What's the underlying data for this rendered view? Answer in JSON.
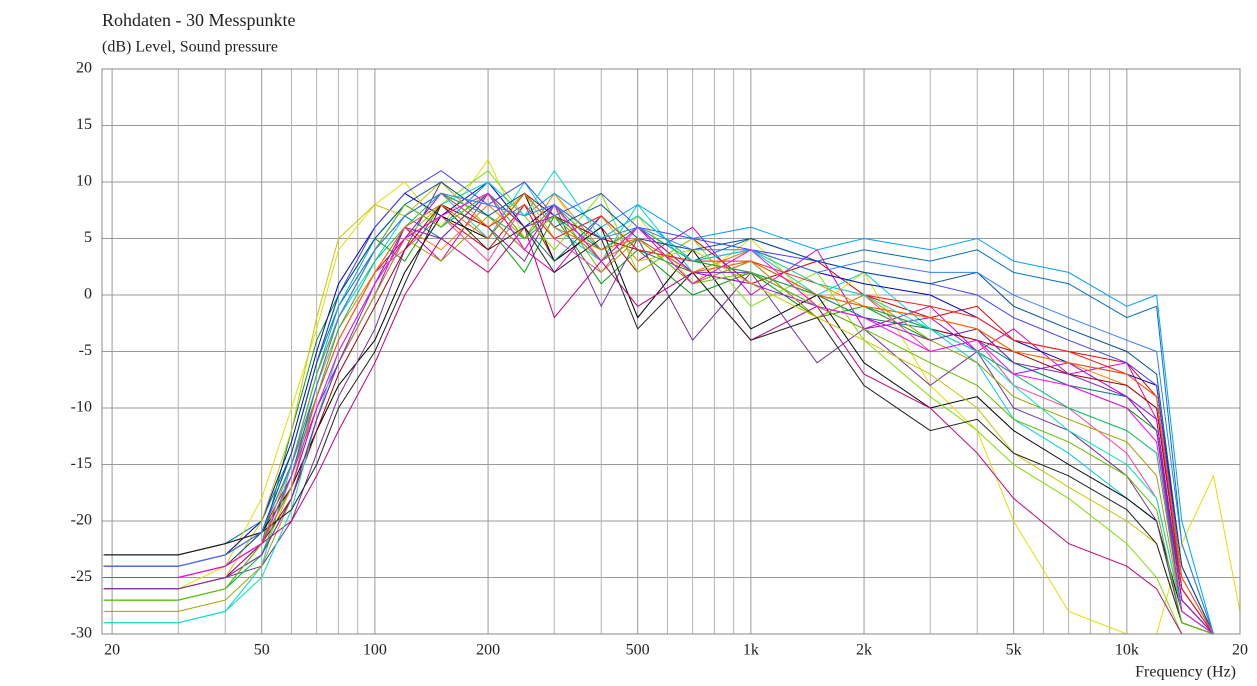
{
  "chart_data": {
    "type": "line",
    "title": "Rohdaten - 30 Messpunkte",
    "subtitle": "(dB)  Level, Sound pressure",
    "x_label": "Frequency  (Hz)",
    "x_scale": "log",
    "grid": true,
    "xlim": [
      18.8,
      20000
    ],
    "ylim": [
      -30,
      20
    ],
    "yticks": [
      -30,
      -25,
      -20,
      -15,
      -10,
      -5,
      0,
      5,
      10,
      15,
      20
    ],
    "xticks": [
      20,
      50,
      100,
      200,
      500,
      {
        "value": 1000,
        "label": "1k"
      },
      {
        "value": 2000,
        "label": "2k"
      },
      {
        "value": 5000,
        "label": "5k"
      },
      {
        "value": 10000,
        "label": "10k"
      },
      {
        "value": 20000,
        "label": "20"
      }
    ],
    "xminorticks": [
      30,
      40,
      60,
      70,
      80,
      90,
      300,
      400,
      600,
      700,
      800,
      900,
      3000,
      4000,
      6000,
      7000,
      8000,
      9000
    ],
    "x": [
      19,
      30,
      40,
      50,
      60,
      70,
      80,
      100,
      120,
      150,
      200,
      250,
      300,
      400,
      500,
      700,
      1000,
      1500,
      2000,
      3000,
      4000,
      5000,
      7000,
      10000,
      12000,
      14000,
      17000,
      20000
    ],
    "series": [
      {
        "color": "#0070c0",
        "values": [
          -23,
          -23,
          -22,
          -20,
          -14,
          -6,
          -1,
          4,
          8,
          6,
          9,
          5,
          7,
          4,
          6,
          3,
          5,
          3,
          4,
          3,
          4,
          2,
          1,
          -2,
          -1,
          -22,
          -30,
          -30
        ]
      },
      {
        "color": "#e00000",
        "values": [
          -24,
          -24,
          -23,
          -21,
          -16,
          -9,
          -4,
          2,
          5,
          7,
          4,
          8,
          3,
          6,
          2,
          5,
          1,
          3,
          0,
          -2,
          -1,
          -4,
          -5,
          -6,
          -9,
          -26,
          -30,
          -30
        ]
      },
      {
        "color": "#00a000",
        "values": [
          -27,
          -27,
          -26,
          -22,
          -12,
          -4,
          0,
          5,
          3,
          8,
          6,
          2,
          7,
          1,
          4,
          0,
          2,
          -2,
          -1,
          -4,
          -3,
          -6,
          -8,
          -10,
          -12,
          -28,
          -30,
          -30
        ]
      },
      {
        "color": "#e000c0",
        "values": [
          -26,
          -26,
          -25,
          -23,
          -18,
          -11,
          -6,
          0,
          6,
          3,
          9,
          4,
          2,
          7,
          3,
          6,
          0,
          4,
          -3,
          -1,
          -5,
          -3,
          -7,
          -6,
          -11,
          -27,
          -30,
          -30
        ]
      },
      {
        "color": "#00d0e0",
        "values": [
          -29,
          -29,
          -28,
          -24,
          -15,
          -7,
          -2,
          3,
          7,
          9,
          5,
          10,
          6,
          3,
          8,
          2,
          4,
          0,
          2,
          -3,
          -6,
          -11,
          -14,
          -18,
          -20,
          -29,
          -30,
          -30
        ]
      },
      {
        "color": "#e0e000",
        "values": [
          -26,
          -26,
          -24,
          -18,
          -10,
          -3,
          4,
          8,
          10,
          6,
          12,
          5,
          9,
          3,
          7,
          1,
          5,
          -1,
          2,
          -8,
          -12,
          -20,
          -28,
          -30,
          -30,
          -22,
          -16,
          -28
        ]
      },
      {
        "color": "#000000",
        "values": [
          -23,
          -23,
          -22,
          -21,
          -17,
          -12,
          -8,
          -4,
          2,
          7,
          5,
          9,
          3,
          6,
          -2,
          4,
          -3,
          0,
          -6,
          -10,
          -9,
          -12,
          -15,
          -18,
          -20,
          -28,
          -30,
          -30
        ]
      },
      {
        "color": "#7030a0",
        "values": [
          -26,
          -26,
          -25,
          -24,
          -20,
          -14,
          -9,
          -3,
          4,
          10,
          6,
          3,
          8,
          -1,
          5,
          -4,
          2,
          -6,
          -3,
          -8,
          -5,
          -10,
          -12,
          -16,
          -20,
          -29,
          -30,
          -30
        ]
      },
      {
        "color": "#ff8000",
        "values": [
          -25,
          -25,
          -24,
          -22,
          -16,
          -8,
          -3,
          2,
          6,
          4,
          8,
          5,
          9,
          4,
          6,
          2,
          4,
          1,
          -1,
          -2,
          -3,
          -5,
          -6,
          -8,
          -10,
          -25,
          -30,
          -30
        ]
      },
      {
        "color": "#0000c0",
        "values": [
          -24,
          -24,
          -23,
          -20,
          -13,
          -5,
          1,
          6,
          9,
          7,
          10,
          6,
          8,
          5,
          7,
          3,
          4,
          2,
          1,
          0,
          -2,
          -4,
          -6,
          -7,
          -8,
          -24,
          -30,
          -30
        ]
      },
      {
        "color": "#80e000",
        "values": [
          -27,
          -27,
          -26,
          -23,
          -17,
          -10,
          -5,
          1,
          5,
          8,
          11,
          7,
          4,
          9,
          2,
          5,
          -1,
          2,
          -4,
          -9,
          -12,
          -15,
          -18,
          -22,
          -25,
          -30,
          -30,
          -30
        ]
      },
      {
        "color": "#ff40a0",
        "values": [
          -25,
          -25,
          -24,
          -21,
          -15,
          -9,
          -4,
          2,
          4,
          7,
          3,
          8,
          5,
          2,
          6,
          1,
          3,
          -2,
          0,
          -5,
          -4,
          -8,
          -10,
          -14,
          -18,
          -28,
          -30,
          -30
        ]
      },
      {
        "color": "#008080",
        "values": [
          -26,
          -26,
          -25,
          -22,
          -16,
          -8,
          -2,
          4,
          7,
          5,
          9,
          6,
          3,
          7,
          4,
          2,
          3,
          0,
          -2,
          -3,
          -4,
          -6,
          -8,
          -9,
          -12,
          -26,
          -30,
          -30
        ]
      },
      {
        "color": "#a000ff",
        "values": [
          -25,
          -25,
          -24,
          -22,
          -17,
          -10,
          -6,
          0,
          5,
          9,
          7,
          4,
          8,
          3,
          6,
          2,
          1,
          -1,
          -3,
          -2,
          -5,
          -7,
          -6,
          -9,
          -11,
          -27,
          -30,
          -30
        ]
      },
      {
        "color": "#00a0ff",
        "values": [
          -24,
          -24,
          -23,
          -21,
          -15,
          -7,
          -1,
          5,
          8,
          6,
          10,
          7,
          9,
          6,
          8,
          5,
          6,
          4,
          5,
          4,
          5,
          3,
          2,
          -1,
          0,
          -20,
          -30,
          -30
        ]
      },
      {
        "color": "#a00000",
        "values": [
          -25,
          -25,
          -24,
          -22,
          -18,
          -12,
          -7,
          -1,
          4,
          8,
          6,
          9,
          7,
          5,
          4,
          3,
          2,
          0,
          -1,
          -3,
          -4,
          -5,
          -7,
          -8,
          -10,
          -26,
          -30,
          -30
        ]
      },
      {
        "color": "#a0a000",
        "values": [
          -28,
          -28,
          -27,
          -24,
          -18,
          -11,
          -6,
          0,
          5,
          3,
          7,
          4,
          8,
          2,
          5,
          1,
          3,
          -2,
          0,
          -4,
          -6,
          -9,
          -11,
          -13,
          -16,
          -28,
          -30,
          -30
        ]
      },
      {
        "color": "#c00080",
        "values": [
          -26,
          -26,
          -25,
          -22,
          -20,
          -16,
          -12,
          -6,
          0,
          5,
          2,
          6,
          -2,
          3,
          -1,
          2,
          -4,
          -1,
          -7,
          -10,
          -14,
          -18,
          -22,
          -24,
          -26,
          -30,
          -30,
          -30
        ]
      },
      {
        "color": "#4040ff",
        "values": [
          -24,
          -24,
          -23,
          -21,
          -14,
          -6,
          0,
          6,
          9,
          11,
          8,
          10,
          7,
          9,
          6,
          5,
          4,
          3,
          2,
          1,
          0,
          -2,
          -4,
          -6,
          -8,
          -25,
          -30,
          -30
        ]
      },
      {
        "color": "#00c060",
        "values": [
          -27,
          -27,
          -26,
          -23,
          -16,
          -9,
          -3,
          3,
          6,
          9,
          7,
          5,
          8,
          4,
          6,
          3,
          2,
          0,
          -1,
          -3,
          -5,
          -7,
          -10,
          -12,
          -14,
          -28,
          -30,
          -30
        ]
      },
      {
        "color": "#c8c800",
        "values": [
          -26,
          -26,
          -25,
          -20,
          -12,
          -2,
          5,
          8,
          7,
          10,
          6,
          9,
          5,
          7,
          3,
          4,
          1,
          -2,
          -4,
          -7,
          -10,
          -14,
          -17,
          -20,
          -22,
          -29,
          -30,
          -30
        ]
      },
      {
        "color": "#ff2020",
        "values": [
          -24,
          -24,
          -23,
          -21,
          -15,
          -7,
          -2,
          4,
          7,
          9,
          6,
          8,
          5,
          7,
          4,
          3,
          3,
          1,
          0,
          -1,
          -2,
          -4,
          -5,
          -7,
          -9,
          -26,
          -30,
          -30
        ]
      },
      {
        "color": "#00e0c0",
        "values": [
          -29,
          -29,
          -28,
          -25,
          -19,
          -11,
          -5,
          1,
          6,
          8,
          10,
          7,
          11,
          5,
          7,
          3,
          4,
          1,
          0,
          -3,
          -5,
          -8,
          -12,
          -15,
          -18,
          -28,
          -30,
          -30
        ]
      },
      {
        "color": "#8020c0",
        "values": [
          -26,
          -26,
          -25,
          -23,
          -18,
          -11,
          -6,
          1,
          6,
          5,
          9,
          6,
          7,
          3,
          5,
          2,
          2,
          -1,
          -2,
          -4,
          -3,
          -6,
          -7,
          -9,
          -12,
          -27,
          -30,
          -30
        ]
      },
      {
        "color": "#202020",
        "values": [
          -23,
          -23,
          -22,
          -21,
          -19,
          -15,
          -10,
          -5,
          1,
          8,
          4,
          6,
          2,
          5,
          -3,
          2,
          -4,
          -2,
          -8,
          -12,
          -11,
          -14,
          -16,
          -19,
          -22,
          -29,
          -30,
          -30
        ]
      },
      {
        "color": "#0050a0",
        "values": [
          -25,
          -25,
          -24,
          -21,
          -14,
          -6,
          0,
          5,
          8,
          10,
          7,
          9,
          6,
          8,
          5,
          4,
          5,
          3,
          2,
          1,
          2,
          -1,
          -3,
          -5,
          -7,
          -24,
          -30,
          -30
        ]
      },
      {
        "color": "#60c000",
        "values": [
          -27,
          -27,
          -26,
          -22,
          -15,
          -7,
          -2,
          4,
          8,
          6,
          9,
          5,
          7,
          3,
          5,
          1,
          2,
          -1,
          -3,
          -6,
          -8,
          -11,
          -13,
          -16,
          -19,
          -29,
          -30,
          -30
        ]
      },
      {
        "color": "#ff6000",
        "values": [
          -25,
          -25,
          -24,
          -22,
          -17,
          -9,
          -4,
          2,
          6,
          8,
          5,
          9,
          6,
          4,
          5,
          2,
          3,
          0,
          -1,
          -2,
          -3,
          -5,
          -6,
          -7,
          -9,
          -25,
          -30,
          -30
        ]
      },
      {
        "color": "#ff00ff",
        "values": [
          -25,
          -25,
          -24,
          -22,
          -16,
          -10,
          -5,
          1,
          5,
          7,
          9,
          4,
          8,
          3,
          6,
          1,
          4,
          -1,
          -2,
          -5,
          -4,
          -7,
          -8,
          -10,
          -13,
          -28,
          -30,
          -30
        ]
      },
      {
        "color": "#3080ff",
        "values": [
          -24,
          -24,
          -23,
          -21,
          -15,
          -8,
          -2,
          4,
          7,
          9,
          8,
          7,
          8,
          5,
          6,
          4,
          4,
          2,
          3,
          2,
          2,
          0,
          -2,
          -4,
          -5,
          -22,
          -30,
          -30
        ]
      }
    ]
  }
}
